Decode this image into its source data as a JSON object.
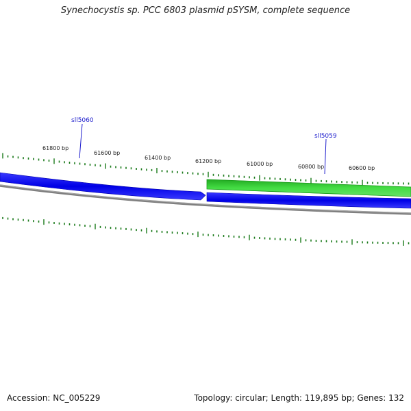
{
  "title": "Synechocystis sp. PCC 6803 plasmid pSYSM, complete sequence",
  "footer": {
    "accession": "Accession: NC_005229",
    "summary": "Topology: circular; Length: 119,895 bp; Genes: 132"
  },
  "ticks": [
    {
      "label": "61800 bp"
    },
    {
      "label": "61600 bp"
    },
    {
      "label": "61400 bp"
    },
    {
      "label": "61200 bp"
    },
    {
      "label": "61000 bp"
    },
    {
      "label": "60800 bp"
    },
    {
      "label": "60600 bp"
    }
  ],
  "genes": [
    {
      "name": "sll5060",
      "strand": "reverse"
    },
    {
      "name": "sll5059",
      "strand": "reverse"
    }
  ],
  "colors": {
    "gene_blue": "#1a1aff",
    "gene_green": "#33cc33",
    "backbone_gray": "#808080",
    "tick_green": "#1a7a1a",
    "label_blue": "#1a1acc"
  }
}
